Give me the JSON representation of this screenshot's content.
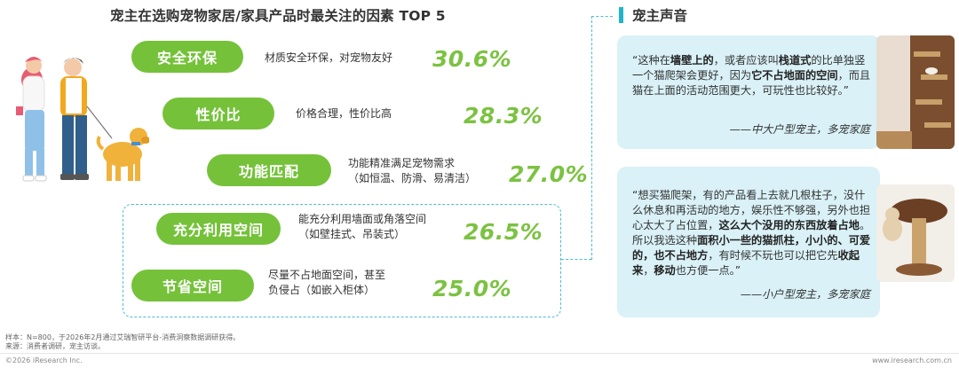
{
  "left": {
    "title": "宠主在选购宠物家居/家具产品时最关注的因素 TOP 5",
    "factors": [
      {
        "label": "安全环保",
        "desc_lines": [
          "材质安全环保，对宠物友好"
        ],
        "percent": "30.6%"
      },
      {
        "label": "性价比",
        "desc_lines": [
          "价格合理，性价比高"
        ],
        "percent": "28.3%"
      },
      {
        "label": "功能匹配",
        "desc_lines": [
          "功能精准满足宠物需求",
          "（如恒温、防滑、易清洁）"
        ],
        "percent": "27.0%"
      },
      {
        "label": "充分利用空间",
        "desc_lines": [
          "能充分利用墙面或角落空间",
          "（如壁挂式、吊装式）"
        ],
        "percent": "26.5%"
      },
      {
        "label": "节省空间",
        "desc_lines": [
          "尽量不占地面空间，甚至",
          "负侵占（如嵌入柜体）"
        ],
        "percent": "25.0%"
      }
    ]
  },
  "right": {
    "title": "宠主声音",
    "quotes": [
      {
        "segments": [
          {
            "t": "“这种在",
            "b": false
          },
          {
            "t": "墙壁上的",
            "b": true
          },
          {
            "t": "，或者应该叫",
            "b": false
          },
          {
            "t": "栈道式",
            "b": true
          },
          {
            "t": "的比单独竖一个猫爬架会更好，因为",
            "b": false
          },
          {
            "t": "它不占地面的空间",
            "b": true
          },
          {
            "t": "，而且猫在上面的活动范围更大，可玩性也比较好。”",
            "b": false
          }
        ],
        "source": "——中大户型宠主，多宠家庭"
      },
      {
        "segments": [
          {
            "t": "“想买猫爬架，有的产品看上去就几根柱子，没什么休息和再活动的地方，娱乐性不够强，另外也担心太大了占位置，",
            "b": false
          },
          {
            "t": "这么大个没用的东西放着占地",
            "b": true
          },
          {
            "t": "。所以我选这种",
            "b": false
          },
          {
            "t": "面积小一些的猫抓柱，小小的、可爱的，也不占地方",
            "b": true
          },
          {
            "t": "，有时候不玩也可以把它先",
            "b": false
          },
          {
            "t": "收起来",
            "b": true
          },
          {
            "t": "，",
            "b": false
          },
          {
            "t": "移动",
            "b": true
          },
          {
            "t": "也方便一点。”",
            "b": false
          }
        ],
        "source": "——小户型宠主，多宠家庭"
      }
    ]
  },
  "notes": {
    "sample": "样本：N=800，于2026年2月通过艾瑞智研平台-消费洞察数据调研获得。",
    "source": "来源：消费者调研，宠主访谈。"
  },
  "footer": {
    "copyright": "©2026 iResearch Inc.",
    "website": "www.iresearch.com.cn"
  },
  "colors": {
    "accent_green": "#75c23a",
    "percent_green": "#7cc242",
    "accent_cyan": "#1fb5cc",
    "card_bg": "#d9f1f7"
  },
  "icons": [
    "person-couple-with-dog-illustration",
    "wall-mounted-cat-shelf-photo",
    "mushroom-cat-scratcher-photo"
  ]
}
